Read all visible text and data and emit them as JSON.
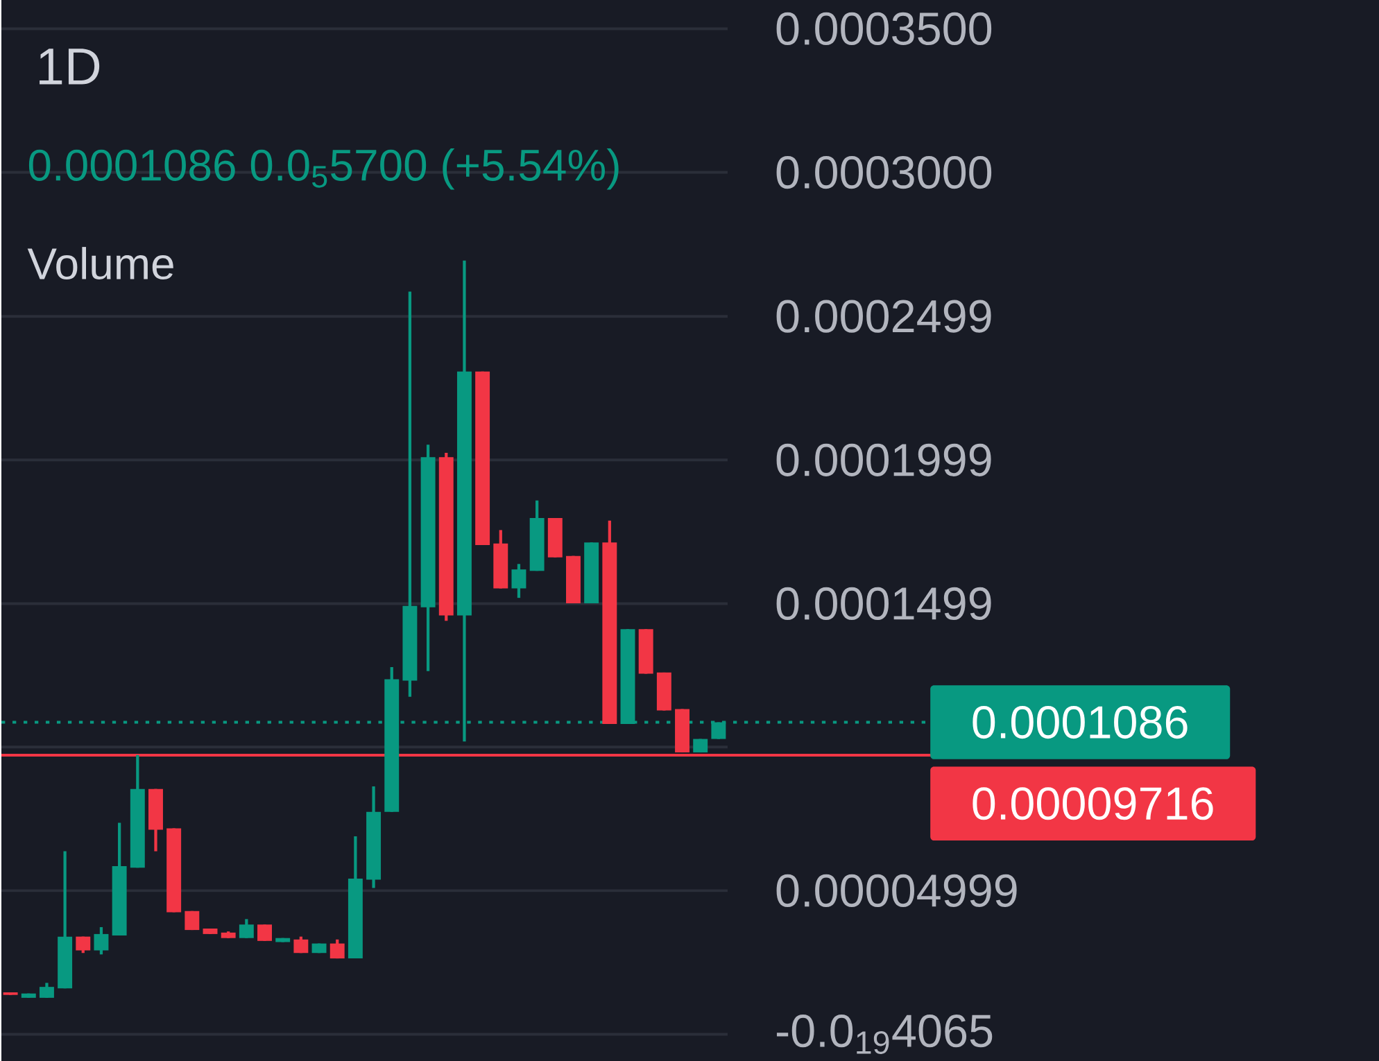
{
  "chart_data": {
    "type": "candlestick",
    "title": "1D",
    "subtitle": "0.0001086  0.0$_{5}$5700 (+5.54%)",
    "annotations": [
      "Volume"
    ],
    "categories": [
      null,
      null,
      null,
      null,
      null,
      null,
      null,
      null,
      null,
      null,
      null,
      null,
      null,
      null,
      null,
      null,
      null,
      null,
      null,
      null,
      null,
      null,
      null,
      null,
      null,
      null,
      null,
      null,
      null,
      null,
      null,
      null,
      null,
      null,
      null,
      null,
      null,
      null,
      null,
      null
    ],
    "ohlc": [
      [
        1.46e-05,
        1.46e-05,
        1.37e-05,
        1.37e-05
      ],
      [
        1.27e-05,
        1.42e-05,
        1.27e-05,
        1.42e-05
      ],
      [
        1.27e-05,
        1.79e-05,
        1.27e-05,
        1.65e-05
      ],
      [
        1.6e-05,
        6.37e-05,
        1.6e-05,
        3.4e-05
      ],
      [
        3.4e-05,
        3.4e-05,
        2.83e-05,
        2.92e-05
      ],
      [
        2.92e-05,
        3.73e-05,
        2.78e-05,
        3.49e-05
      ],
      [
        3.44e-05,
        7.36e-05,
        3.44e-05,
        5.85e-05
      ],
      [
        5.8e-05,
        9.72e-05,
        5.8e-05,
        8.54e-05
      ],
      [
        8.54e-05,
        8.54e-05,
        6.37e-05,
        7.12e-05
      ],
      [
        7.17e-05,
        7.17e-05,
        4.25e-05,
        4.25e-05
      ],
      [
        4.29e-05,
        4.29e-05,
        3.63e-05,
        3.63e-05
      ],
      [
        3.68e-05,
        3.68e-05,
        3.49e-05,
        3.49e-05
      ],
      [
        3.54e-05,
        3.58e-05,
        3.35e-05,
        3.35e-05
      ],
      [
        3.35e-05,
        4.01e-05,
        3.35e-05,
        3.82e-05
      ],
      [
        3.82e-05,
        3.82e-05,
        3.25e-05,
        3.25e-05
      ],
      [
        3.21e-05,
        3.35e-05,
        3.21e-05,
        3.35e-05
      ],
      [
        3.3e-05,
        3.4e-05,
        2.83e-05,
        2.83e-05
      ],
      [
        2.83e-05,
        3.16e-05,
        2.83e-05,
        3.16e-05
      ],
      [
        3.16e-05,
        3.3e-05,
        2.64e-05,
        2.64e-05
      ],
      [
        2.64e-05,
        6.89e-05,
        2.64e-05,
        5.42e-05
      ],
      [
        5.38e-05,
        8.63e-05,
        5.09e-05,
        7.74e-05
      ],
      [
        7.74e-05,
        0.0001278,
        7.74e-05,
        0.0001236
      ],
      [
        0.0001231,
        0.0002585,
        0.0001175,
        0.0001491
      ],
      [
        0.0001486,
        0.0002052,
        0.0001264,
        0.0002009
      ],
      [
        0.0002009,
        0.0002024,
        0.0001439,
        0.0001458
      ],
      [
        0.0001458,
        0.0002693,
        0.0001019,
        0.0002307
      ],
      [
        0.0002307,
        0.0002307,
        0.0001703,
        0.0001703
      ],
      [
        0.0001708,
        0.0001755,
        0.0001552,
        0.0001552
      ],
      [
        0.0001552,
        0.0001637,
        0.0001519,
        0.0001618
      ],
      [
        0.0001613,
        0.0001858,
        0.0001613,
        0.0001797
      ],
      [
        0.0001797,
        0.0001797,
        0.000166,
        0.000166
      ],
      [
        0.0001665,
        0.0001665,
        0.00015,
        0.00015
      ],
      [
        0.00015,
        0.0001712,
        0.00015,
        0.0001712
      ],
      [
        0.0001712,
        0.0001788,
        0.000108,
        0.000108
      ],
      [
        0.000108,
        0.000141,
        0.000108,
        0.000141
      ],
      [
        0.000141,
        0.000141,
        0.0001255,
        0.0001255
      ],
      [
        0.0001259,
        0.0001259,
        0.0001127,
        0.0001127
      ],
      [
        0.0001132,
        0.0001132,
        9.81e-05,
        9.81e-05
      ],
      [
        9.81e-05,
        0.0001028,
        9.81e-05,
        0.0001028
      ],
      [
        0.0001028,
        0.0001086,
        0.0001028,
        0.0001086
      ]
    ],
    "colors": [
      "#f23645",
      "#089981",
      "#089981",
      "#089981",
      "#f23645",
      "#089981",
      "#089981",
      "#089981",
      "#f23645",
      "#f23645",
      "#f23645",
      "#f23645",
      "#f23645",
      "#089981",
      "#f23645",
      "#089981",
      "#f23645",
      "#089981",
      "#f23645",
      "#089981",
      "#089981",
      "#089981",
      "#089981",
      "#089981",
      "#f23645",
      "#089981",
      "#f23645",
      "#f23645",
      "#089981",
      "#089981",
      "#f23645",
      "#f23645",
      "#089981",
      "#f23645",
      "#089981",
      "#f23645",
      "#f23645",
      "#f23645",
      "#089981",
      "#089981"
    ],
    "ylim": [
      -9.4e-06,
      0.00036
    ],
    "yticks": [
      {
        "value": -4.065e-20,
        "label": "-0.0$_{19}$4065"
      },
      {
        "value": 4.999e-05,
        "label": "0.00004999"
      },
      {
        "value": 0.0001,
        "label": null
      },
      {
        "value": 0.0001499,
        "label": "0.0001499"
      },
      {
        "value": 0.0001999,
        "label": "0.0001999"
      },
      {
        "value": 0.0002499,
        "label": "0.0002499"
      },
      {
        "value": 0.0003,
        "label": "0.0003000"
      },
      {
        "value": 0.00035,
        "label": "0.0003500"
      }
    ],
    "grid": "y",
    "ref_lines": [
      {
        "axis": "y",
        "value": 0.0001086,
        "label": "0.0001086",
        "color": "#089981",
        "line_style": "dotted"
      },
      {
        "axis": "y",
        "value": 9.716e-05,
        "label": "0.00009716",
        "color": "#f23645",
        "line_style": "solid"
      }
    ]
  }
}
